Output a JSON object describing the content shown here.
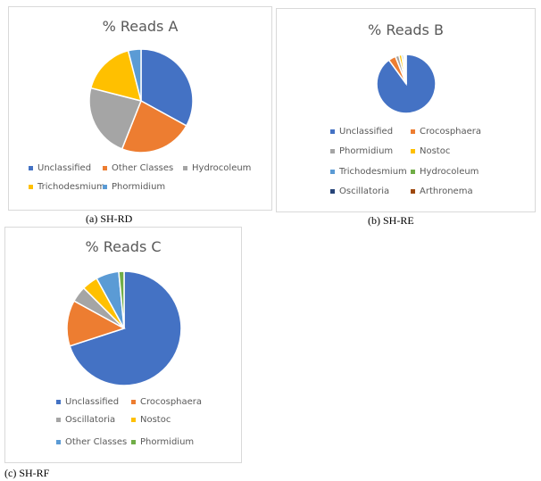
{
  "chart_data": [
    {
      "type": "pie",
      "title": "% Reads  A",
      "caption": "(a) SH-RD",
      "legend_position": "bottom",
      "series": [
        {
          "name": "Unclassified",
          "value": 33,
          "color": "#4472C4"
        },
        {
          "name": "Other Classes",
          "value": 23,
          "color": "#ED7D31"
        },
        {
          "name": "Hydrocoleum",
          "value": 23,
          "color": "#A5A5A5"
        },
        {
          "name": "Trichodesmium",
          "value": 17,
          "color": "#FFC000"
        },
        {
          "name": "Phormidium",
          "value": 4,
          "color": "#5B9BD5"
        }
      ]
    },
    {
      "type": "pie",
      "title": "% Reads  B",
      "caption": "(b) SH-RE",
      "legend_position": "bottom",
      "series": [
        {
          "name": "Unclassified",
          "value": 90,
          "color": "#4472C4"
        },
        {
          "name": "Crocosphaera",
          "value": 4,
          "color": "#ED7D31"
        },
        {
          "name": "Phormidium",
          "value": 2,
          "color": "#A5A5A5"
        },
        {
          "name": "Nostoc",
          "value": 1.5,
          "color": "#FFC000"
        },
        {
          "name": "Trichodesmium",
          "value": 1,
          "color": "#5B9BD5"
        },
        {
          "name": "Hydrocoleum",
          "value": 0.7,
          "color": "#70AD47"
        },
        {
          "name": "Oscillatoria",
          "value": 0.5,
          "color": "#264478"
        },
        {
          "name": "Arthronema",
          "value": 0.3,
          "color": "#9E480E"
        }
      ]
    },
    {
      "type": "pie",
      "title": "% Reads  C",
      "caption": "(c) SH-RF",
      "legend_position": "bottom",
      "series": [
        {
          "name": "Unclassified",
          "value": 70,
          "color": "#4472C4"
        },
        {
          "name": "Crocosphaera",
          "value": 13,
          "color": "#ED7D31"
        },
        {
          "name": "Oscillatoria",
          "value": 4.5,
          "color": "#A5A5A5"
        },
        {
          "name": "Nostoc",
          "value": 4.5,
          "color": "#FFC000"
        },
        {
          "name": "Other Classes",
          "value": 6.5,
          "color": "#5B9BD5"
        },
        {
          "name": "Phormidium",
          "value": 1.5,
          "color": "#70AD47"
        }
      ]
    }
  ]
}
